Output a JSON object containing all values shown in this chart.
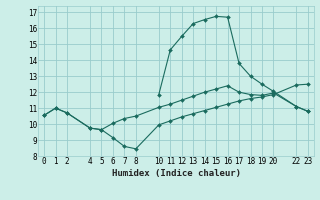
{
  "xlabel": "Humidex (Indice chaleur)",
  "bg_color": "#cceee8",
  "line_color": "#1a6b5e",
  "grid_color": "#99cccc",
  "xlim": [
    -0.5,
    23.5
  ],
  "ylim": [
    8,
    17.4
  ],
  "xticks": [
    0,
    1,
    2,
    4,
    5,
    6,
    7,
    8,
    10,
    11,
    12,
    13,
    14,
    15,
    16,
    17,
    18,
    19,
    20,
    22,
    23
  ],
  "yticks": [
    8,
    9,
    10,
    11,
    12,
    13,
    14,
    15,
    16,
    17
  ],
  "line1_x": [
    0,
    1,
    2,
    4,
    5,
    6,
    7,
    8,
    10,
    11,
    12,
    13,
    14,
    15,
    16,
    17,
    18,
    19,
    20,
    22,
    23
  ],
  "line1_y": [
    10.55,
    11.0,
    10.7,
    9.75,
    9.65,
    9.15,
    8.6,
    8.45,
    9.95,
    10.2,
    10.45,
    10.65,
    10.85,
    11.05,
    11.25,
    11.45,
    11.6,
    11.7,
    11.85,
    12.45,
    12.5
  ],
  "line2_x": [
    0,
    1,
    2,
    4,
    5,
    6,
    7,
    8,
    10,
    11,
    12,
    13,
    14,
    15,
    16,
    17,
    18,
    19,
    20,
    22,
    23
  ],
  "line2_y": [
    10.55,
    11.0,
    10.7,
    9.75,
    9.65,
    10.05,
    10.35,
    10.5,
    11.05,
    11.25,
    11.5,
    11.75,
    12.0,
    12.2,
    12.4,
    12.0,
    11.85,
    11.8,
    11.95,
    11.1,
    10.8
  ],
  "line3_x": [
    10,
    11,
    12,
    13,
    14,
    15,
    16,
    17,
    18,
    19,
    20,
    22,
    23
  ],
  "line3_y": [
    11.85,
    14.65,
    15.5,
    16.3,
    16.55,
    16.75,
    16.7,
    13.8,
    13.0,
    12.5,
    12.05,
    11.1,
    10.8
  ]
}
